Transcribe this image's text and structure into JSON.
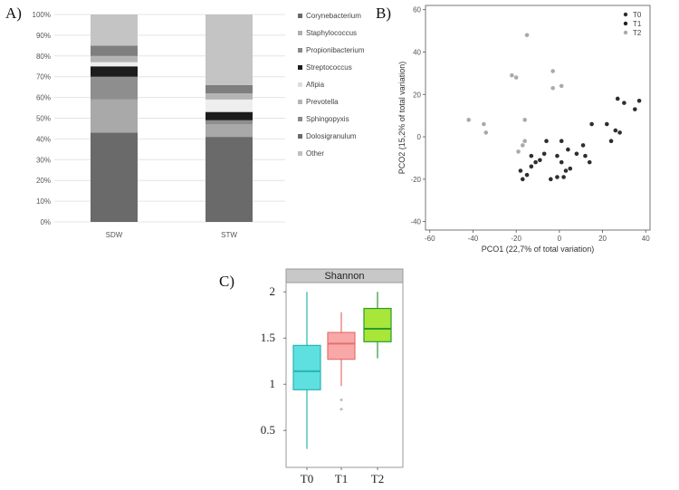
{
  "panel_labels": {
    "a": "A)",
    "b": "B)",
    "c": "C)"
  },
  "chart_data": [
    {
      "type": "bar",
      "stacked": true,
      "categories": [
        "SDW",
        "STW"
      ],
      "ylim": [
        0,
        100
      ],
      "yticks": [
        "0%",
        "10%",
        "20%",
        "30%",
        "40%",
        "50%",
        "60%",
        "70%",
        "80%",
        "90%",
        "100%"
      ],
      "series": [
        {
          "name": "Dolosigranulum",
          "color": "#6a6a6a",
          "values": [
            43,
            41
          ]
        },
        {
          "name": "Sphingopyxis",
          "color": "#a9a9a9",
          "values": [
            16,
            6
          ]
        },
        {
          "name": "Prevotella",
          "color": "#8e8e8e",
          "values": [
            11,
            2
          ]
        },
        {
          "name": "Afipia",
          "color": "#e8e8e8",
          "values": [
            0,
            0
          ]
        },
        {
          "name": "Streptococcus",
          "color": "#1c1c1c",
          "values": [
            5,
            4
          ]
        },
        {
          "name": "Propionibacterium",
          "color": "#eeeeee",
          "values": [
            2,
            6
          ]
        },
        {
          "name": "Staphylococcus",
          "color": "#b4b4b4",
          "values": [
            3,
            3
          ]
        },
        {
          "name": "Corynebacterium",
          "color": "#7f7f7f",
          "values": [
            5,
            4
          ]
        },
        {
          "name": "Other",
          "color": "#c4c4c4",
          "values": [
            15,
            34
          ]
        }
      ],
      "legend": [
        "Corynebacterium",
        "Staphylococcus",
        "Propionibacterium",
        "Streptococcus",
        "Afipia",
        "Prevotella",
        "Sphingopyxis",
        "Dolosigranulum",
        "Other"
      ],
      "legend_colors": [
        "#6a6a6a",
        "#b0b0b0",
        "#888888",
        "#1c1c1c",
        "#dddddd",
        "#b4b4b4",
        "#8a8a8a",
        "#6a6a6a",
        "#c0c0c0"
      ]
    },
    {
      "type": "scatter",
      "xlabel": "PCO1 (22,7% of total variation)",
      "ylabel": "PCO2 (15,2% of total variation)",
      "xlim": [
        -62,
        42
      ],
      "ylim": [
        -44,
        62
      ],
      "xticks": [
        -60,
        -40,
        -20,
        0,
        20,
        40
      ],
      "yticks": [
        -40,
        -20,
        0,
        20,
        40,
        60
      ],
      "legend_position": "top-right",
      "series": [
        {
          "name": "T0",
          "color": "#2e2e2e",
          "points": [
            [
              -18,
              -16
            ],
            [
              -17,
              -20
            ],
            [
              -15,
              -18
            ],
            [
              -13,
              -9
            ],
            [
              -11,
              -12
            ],
            [
              -9,
              -11
            ],
            [
              -7,
              -8
            ],
            [
              -6,
              -2
            ],
            [
              -4,
              -20
            ],
            [
              -1,
              -19
            ],
            [
              1,
              -2
            ],
            [
              2,
              -19
            ],
            [
              3,
              -16
            ],
            [
              4,
              -6
            ],
            [
              5,
              -15
            ],
            [
              8,
              -8
            ],
            [
              11,
              -4
            ],
            [
              12,
              -9
            ],
            [
              14,
              -12
            ],
            [
              15,
              6
            ],
            [
              22,
              6
            ],
            [
              24,
              -2
            ],
            [
              26,
              3
            ],
            [
              27,
              18
            ],
            [
              28,
              2
            ],
            [
              30,
              16
            ],
            [
              35,
              13
            ],
            [
              37,
              17
            ],
            [
              -13,
              -14
            ],
            [
              1,
              -12
            ],
            [
              -1,
              -9
            ]
          ]
        },
        {
          "name": "T1",
          "color": "#222222",
          "points": []
        },
        {
          "name": "T2",
          "color": "#aaaaaa",
          "points": [
            [
              -42,
              8
            ],
            [
              -35,
              6
            ],
            [
              -34,
              2
            ],
            [
              -22,
              29
            ],
            [
              -20,
              28
            ],
            [
              -19,
              -7
            ],
            [
              -17,
              -4
            ],
            [
              -16,
              -2
            ],
            [
              -16,
              8
            ],
            [
              -15,
              48
            ],
            [
              -3,
              23
            ],
            [
              -3,
              31
            ],
            [
              1,
              24
            ]
          ]
        }
      ]
    },
    {
      "type": "box",
      "title": "Shannon",
      "categories": [
        "T0",
        "T1",
        "T2"
      ],
      "ylim": [
        0.1,
        2.1
      ],
      "yticks": [
        "0.5",
        "1",
        "1.5",
        "2"
      ],
      "ytick_values": [
        0.5,
        1,
        1.5,
        2
      ],
      "boxes": [
        {
          "name": "T0",
          "min": 0.3,
          "q1": 0.94,
          "median": 1.14,
          "q3": 1.42,
          "max": 2.0,
          "outliers": [],
          "fill": "#5fe0e0",
          "stroke": "#2ab3b3"
        },
        {
          "name": "T1",
          "min": 0.98,
          "q1": 1.27,
          "median": 1.44,
          "q3": 1.56,
          "max": 1.78,
          "outliers": [
            0.83,
            0.73
          ],
          "fill": "#f9a8a8",
          "stroke": "#e56f6f"
        },
        {
          "name": "T2",
          "min": 1.28,
          "q1": 1.46,
          "median": 1.6,
          "q3": 1.82,
          "max": 2.0,
          "outliers": [],
          "fill": "#a8e63a",
          "stroke": "#2a9a2a"
        }
      ]
    }
  ]
}
